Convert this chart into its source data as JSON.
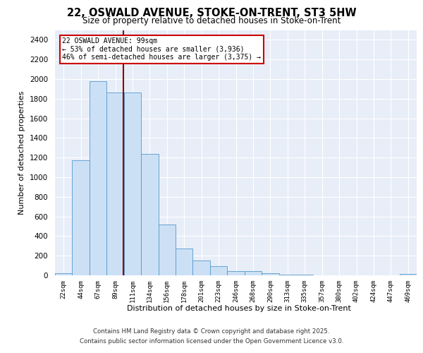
{
  "title": "22, OSWALD AVENUE, STOKE-ON-TRENT, ST3 5HW",
  "subtitle": "Size of property relative to detached houses in Stoke-on-Trent",
  "xlabel": "Distribution of detached houses by size in Stoke-on-Trent",
  "ylabel": "Number of detached properties",
  "bin_labels": [
    "22sqm",
    "44sqm",
    "67sqm",
    "89sqm",
    "111sqm",
    "134sqm",
    "156sqm",
    "178sqm",
    "201sqm",
    "223sqm",
    "246sqm",
    "268sqm",
    "290sqm",
    "313sqm",
    "335sqm",
    "357sqm",
    "380sqm",
    "402sqm",
    "424sqm",
    "447sqm",
    "469sqm"
  ],
  "bar_values": [
    25,
    1170,
    1980,
    1860,
    1860,
    1240,
    520,
    270,
    150,
    90,
    40,
    40,
    20,
    8,
    5,
    3,
    2,
    2,
    1,
    1,
    15
  ],
  "bar_color": "#cce0f5",
  "bar_edge_color": "#5599cc",
  "vline_color": "#8b0000",
  "annotation_text": "22 OSWALD AVENUE: 99sqm\n← 53% of detached houses are smaller (3,936)\n46% of semi-detached houses are larger (3,375) →",
  "annotation_box_color": "#ffffff",
  "annotation_edge_color": "#cc0000",
  "ylim": [
    0,
    2500
  ],
  "yticks": [
    0,
    200,
    400,
    600,
    800,
    1000,
    1200,
    1400,
    1600,
    1800,
    2000,
    2200,
    2400
  ],
  "background_color": "#e8eef8",
  "footer_line1": "Contains HM Land Registry data © Crown copyright and database right 2025.",
  "footer_line2": "Contains public sector information licensed under the Open Government Licence v3.0."
}
